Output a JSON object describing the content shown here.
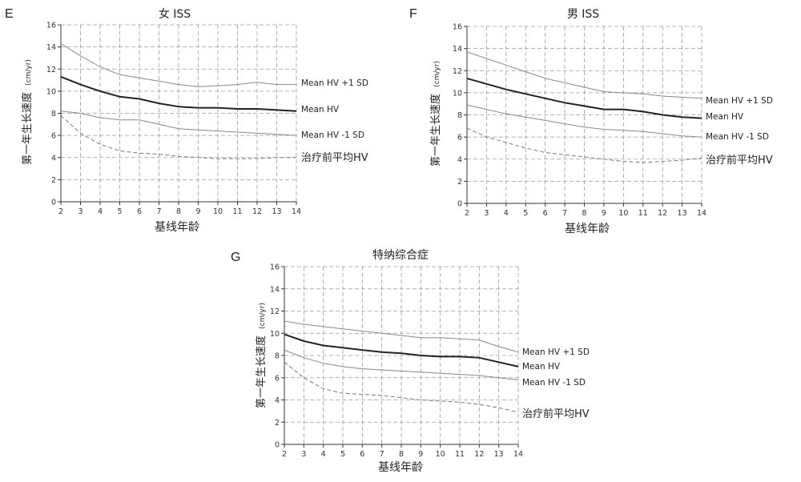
{
  "chart_data": [
    {
      "type": "line",
      "panel": "E",
      "title": "女 ISS",
      "xlabel": "基线年龄",
      "ylabel": "第一年生长速度",
      "ylabel_unit": "(cm/yr)",
      "xlim": [
        2,
        14
      ],
      "ylim": [
        0,
        16
      ],
      "x_ticks": [
        2,
        3,
        4,
        5,
        6,
        7,
        8,
        9,
        10,
        11,
        12,
        13,
        14
      ],
      "y_ticks": [
        0,
        2,
        4,
        6,
        8,
        10,
        12,
        14,
        16
      ],
      "grid": true,
      "x": [
        2,
        3,
        4,
        5,
        6,
        7,
        8,
        9,
        10,
        11,
        12,
        13,
        14
      ],
      "series": [
        {
          "name": "Mean HV +1 SD",
          "style": "solid-thin",
          "color": "#888888",
          "values": [
            14.3,
            13.2,
            12.2,
            11.5,
            11.2,
            10.9,
            10.6,
            10.4,
            10.5,
            10.6,
            10.8,
            10.6,
            10.6
          ]
        },
        {
          "name": "Mean HV",
          "style": "solid-thick",
          "color": "#222222",
          "values": [
            11.3,
            10.6,
            10.0,
            9.5,
            9.3,
            8.9,
            8.6,
            8.5,
            8.5,
            8.4,
            8.4,
            8.3,
            8.2
          ]
        },
        {
          "name": "Mean HV -1 SD",
          "style": "solid-thin",
          "color": "#888888",
          "values": [
            8.2,
            8.0,
            7.6,
            7.4,
            7.4,
            7.0,
            6.6,
            6.5,
            6.4,
            6.3,
            6.2,
            6.1,
            6.0
          ]
        },
        {
          "name": "治疗前平均HV",
          "style": "dashed",
          "color": "#777777",
          "values": [
            7.8,
            6.2,
            5.2,
            4.6,
            4.4,
            4.3,
            4.1,
            4.0,
            3.9,
            3.9,
            3.9,
            4.0,
            4.0
          ]
        }
      ]
    },
    {
      "type": "line",
      "panel": "F",
      "title": "男 ISS",
      "xlabel": "基线年龄",
      "ylabel": "第一年生长速度",
      "ylabel_unit": "(cm/yr)",
      "xlim": [
        2,
        14
      ],
      "ylim": [
        0,
        16
      ],
      "x_ticks": [
        2,
        3,
        4,
        5,
        6,
        7,
        8,
        9,
        10,
        11,
        12,
        13,
        14
      ],
      "y_ticks": [
        0,
        2,
        4,
        6,
        8,
        10,
        12,
        14,
        16
      ],
      "grid": true,
      "x": [
        2,
        3,
        4,
        5,
        6,
        7,
        8,
        9,
        10,
        11,
        12,
        13,
        14
      ],
      "series": [
        {
          "name": "Mean HV +1 SD",
          "style": "solid-thin",
          "color": "#888888",
          "values": [
            13.7,
            13.1,
            12.5,
            11.9,
            11.3,
            10.9,
            10.5,
            10.1,
            10.0,
            9.9,
            9.7,
            9.6,
            9.5
          ]
        },
        {
          "name": "Mean HV",
          "style": "solid-thick",
          "color": "#222222",
          "values": [
            11.3,
            10.8,
            10.3,
            9.9,
            9.5,
            9.1,
            8.8,
            8.5,
            8.5,
            8.3,
            8.0,
            7.8,
            7.7
          ]
        },
        {
          "name": "Mean HV -1 SD",
          "style": "solid-thin",
          "color": "#888888",
          "values": [
            8.9,
            8.5,
            8.1,
            7.8,
            7.5,
            7.2,
            6.9,
            6.7,
            6.6,
            6.5,
            6.3,
            6.1,
            6.0
          ]
        },
        {
          "name": "治疗前平均HV",
          "style": "dashed",
          "color": "#777777",
          "values": [
            6.8,
            6.0,
            5.5,
            5.0,
            4.6,
            4.4,
            4.2,
            4.0,
            3.8,
            3.7,
            3.8,
            3.9,
            4.1
          ]
        }
      ]
    },
    {
      "type": "line",
      "panel": "G",
      "title": "特纳综合症",
      "xlabel": "基线年龄",
      "ylabel": "第一年生长速度",
      "ylabel_unit": "(cm/yr)",
      "xlim": [
        2,
        14
      ],
      "ylim": [
        0,
        16
      ],
      "x_ticks": [
        2,
        3,
        4,
        5,
        6,
        7,
        8,
        9,
        10,
        11,
        12,
        13,
        14
      ],
      "y_ticks": [
        0,
        2,
        4,
        6,
        8,
        10,
        12,
        14,
        16
      ],
      "grid": true,
      "x": [
        2,
        3,
        4,
        5,
        6,
        7,
        8,
        9,
        10,
        11,
        12,
        13,
        14
      ],
      "series": [
        {
          "name": "Mean HV +1 SD",
          "style": "solid-thin",
          "color": "#888888",
          "values": [
            11.1,
            10.8,
            10.6,
            10.4,
            10.2,
            10.0,
            9.8,
            9.6,
            9.6,
            9.5,
            9.4,
            8.8,
            8.3
          ]
        },
        {
          "name": "Mean HV",
          "style": "solid-thick",
          "color": "#222222",
          "values": [
            9.9,
            9.3,
            8.9,
            8.7,
            8.5,
            8.3,
            8.2,
            8.0,
            7.9,
            7.9,
            7.8,
            7.4,
            7.0
          ]
        },
        {
          "name": "Mean HV -1 SD",
          "style": "solid-thin",
          "color": "#888888",
          "values": [
            8.5,
            7.8,
            7.3,
            7.0,
            6.8,
            6.7,
            6.6,
            6.5,
            6.4,
            6.3,
            6.2,
            6.0,
            5.8
          ]
        },
        {
          "name": "治疗前平均HV",
          "style": "dashed",
          "color": "#777777",
          "values": [
            7.4,
            6.0,
            5.0,
            4.6,
            4.5,
            4.4,
            4.2,
            4.0,
            3.9,
            3.8,
            3.6,
            3.3,
            2.9
          ]
        }
      ]
    }
  ]
}
